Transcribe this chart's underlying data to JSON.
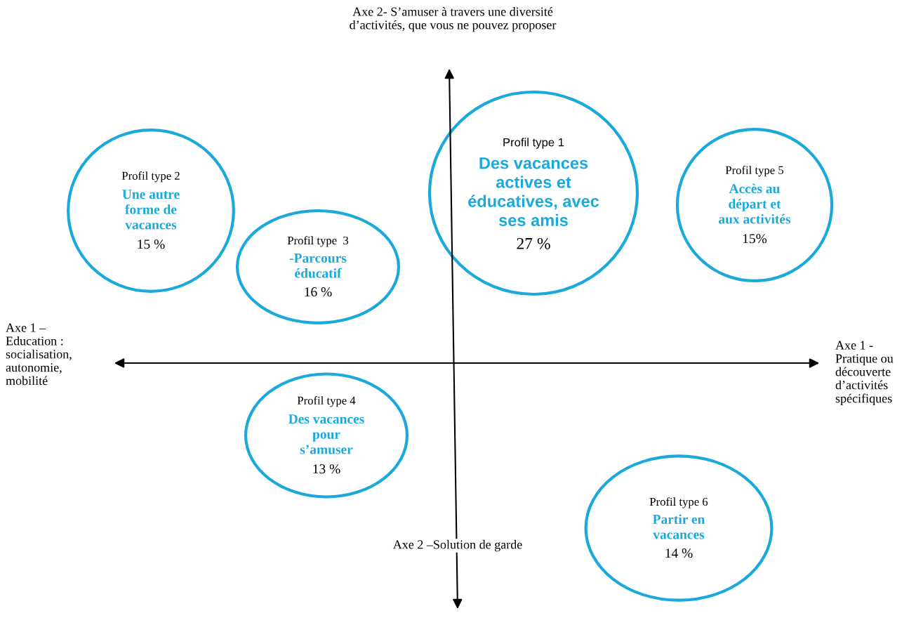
{
  "chart_data": {
    "type": "other",
    "xlabel": "Axe 1 -\nPratique ou\ndécouverte\nd’activités\nspécifiques",
    "ylabel": "Axe 2- S’amuser à travers une diversité\nd’activités, que vous ne pouvez proposer",
    "annotations": [
      "Axe 1 –\nEducation :\nsocialisation,\nautonomie,\nmobilité",
      "Axe 2 –Solution de garde",
      "Profil type 1",
      "Profil type 2",
      "Profil type  3",
      "Profil type 4",
      "Profil type 5",
      "Profil type 6"
    ],
    "categories": [
      "Des vacances\nactives et\néducatives, avec\nses amis",
      "Une autre\nforme de\nvacances",
      "-Parcours\néducatif",
      "Des vacances\npour\ns’amuser",
      "Accès au\ndépart et\naux activités",
      "Partir en\nvacances"
    ],
    "values": [
      27,
      15,
      16,
      13,
      15,
      14
    ],
    "value_labels": [
      "27 %",
      "15 %",
      "16 %",
      "13 %",
      "15%",
      "14 %"
    ],
    "color": "#1ba9dc"
  }
}
